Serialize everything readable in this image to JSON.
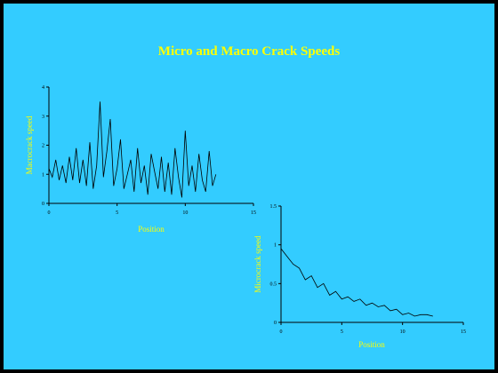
{
  "title": "Micro and Macro Crack Speeds",
  "chart_data": [
    {
      "type": "line",
      "xlabel": "Position",
      "ylabel": "Macrocrack speed",
      "xlim": [
        0,
        15
      ],
      "ylim": [
        0,
        4
      ],
      "xticks": [
        0,
        5,
        10,
        15
      ],
      "yticks": [
        0,
        1,
        2,
        3,
        4
      ],
      "series": [
        {
          "x": [
            0.0,
            0.25,
            0.5,
            0.75,
            1.0,
            1.25,
            1.5,
            1.75,
            2.0,
            2.25,
            2.5,
            2.75,
            3.0,
            3.25,
            3.5,
            3.75,
            4.0,
            4.25,
            4.5,
            4.75,
            5.0,
            5.25,
            5.5,
            5.75,
            6.0,
            6.25,
            6.5,
            6.75,
            7.0,
            7.25,
            7.5,
            7.75,
            8.0,
            8.25,
            8.5,
            8.75,
            9.0,
            9.25,
            9.5,
            9.75,
            10.0,
            10.25,
            10.5,
            10.75,
            11.0,
            11.25,
            11.5,
            11.75,
            12.0,
            12.25
          ],
          "y": [
            1.2,
            0.9,
            1.5,
            0.8,
            1.3,
            0.7,
            1.6,
            0.8,
            1.9,
            0.7,
            1.5,
            0.6,
            2.1,
            0.5,
            1.3,
            3.5,
            0.9,
            1.8,
            2.9,
            0.6,
            1.2,
            2.2,
            0.5,
            1.0,
            1.5,
            0.4,
            1.9,
            0.7,
            1.3,
            0.3,
            1.7,
            1.1,
            0.5,
            1.6,
            0.4,
            1.4,
            0.3,
            1.9,
            0.9,
            0.2,
            2.5,
            0.6,
            1.3,
            0.4,
            1.7,
            0.8,
            0.4,
            1.8,
            0.6,
            1.0
          ]
        }
      ]
    },
    {
      "type": "line",
      "xlabel": "Position",
      "ylabel": "Microcrack speed",
      "xlim": [
        0,
        15
      ],
      "ylim": [
        0,
        1.5
      ],
      "xticks": [
        0,
        5,
        10,
        15
      ],
      "yticks": [
        0,
        0.5,
        1,
        1.5
      ],
      "series": [
        {
          "x": [
            0.0,
            0.5,
            1.0,
            1.5,
            2.0,
            2.5,
            3.0,
            3.5,
            4.0,
            4.5,
            5.0,
            5.5,
            6.0,
            6.5,
            7.0,
            7.5,
            8.0,
            8.5,
            9.0,
            9.5,
            10.0,
            10.5,
            11.0,
            11.5,
            12.0,
            12.5
          ],
          "y": [
            0.95,
            0.85,
            0.75,
            0.7,
            0.55,
            0.6,
            0.45,
            0.5,
            0.35,
            0.4,
            0.3,
            0.33,
            0.27,
            0.3,
            0.22,
            0.25,
            0.2,
            0.22,
            0.15,
            0.17,
            0.1,
            0.12,
            0.08,
            0.1,
            0.1,
            0.08
          ]
        }
      ]
    }
  ]
}
